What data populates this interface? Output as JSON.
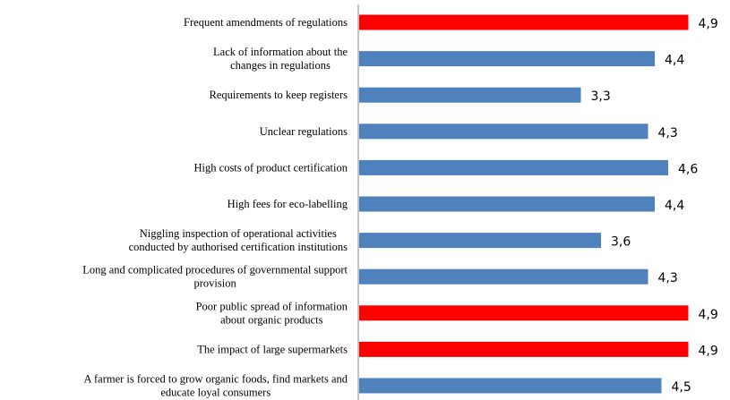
{
  "chart_data": {
    "type": "bar",
    "orientation": "horizontal",
    "categories": [
      "Frequent amendments of regulations",
      "Lack of information about the\nchanges in regulations",
      "Requirements to keep registers",
      "Unclear regulations",
      "High costs of product certification",
      "High fees for eco-labelling",
      "Niggling inspection of operational activities\nconducted by authorised certification institutions",
      "Long and complicated procedures of governmental support\nprovision",
      "Poor public spread of information\nabout organic products",
      "The impact of large supermarkets",
      "A farmer is forced to grow organic foods, find markets and\neducate loyal consumers"
    ],
    "values": [
      4.9,
      4.4,
      3.3,
      4.3,
      4.6,
      4.4,
      3.6,
      4.3,
      4.9,
      4.9,
      4.5
    ],
    "value_labels": [
      "4,9",
      "4,4",
      "3,3",
      "4,3",
      "4,6",
      "4,4",
      "3,6",
      "4,3",
      "4,9",
      "4,9",
      "4,5"
    ],
    "colors": [
      "#ff0000",
      "#4f81bd",
      "#4f81bd",
      "#4f81bd",
      "#4f81bd",
      "#4f81bd",
      "#4f81bd",
      "#4f81bd",
      "#ff0000",
      "#ff0000",
      "#4f81bd"
    ]
  }
}
